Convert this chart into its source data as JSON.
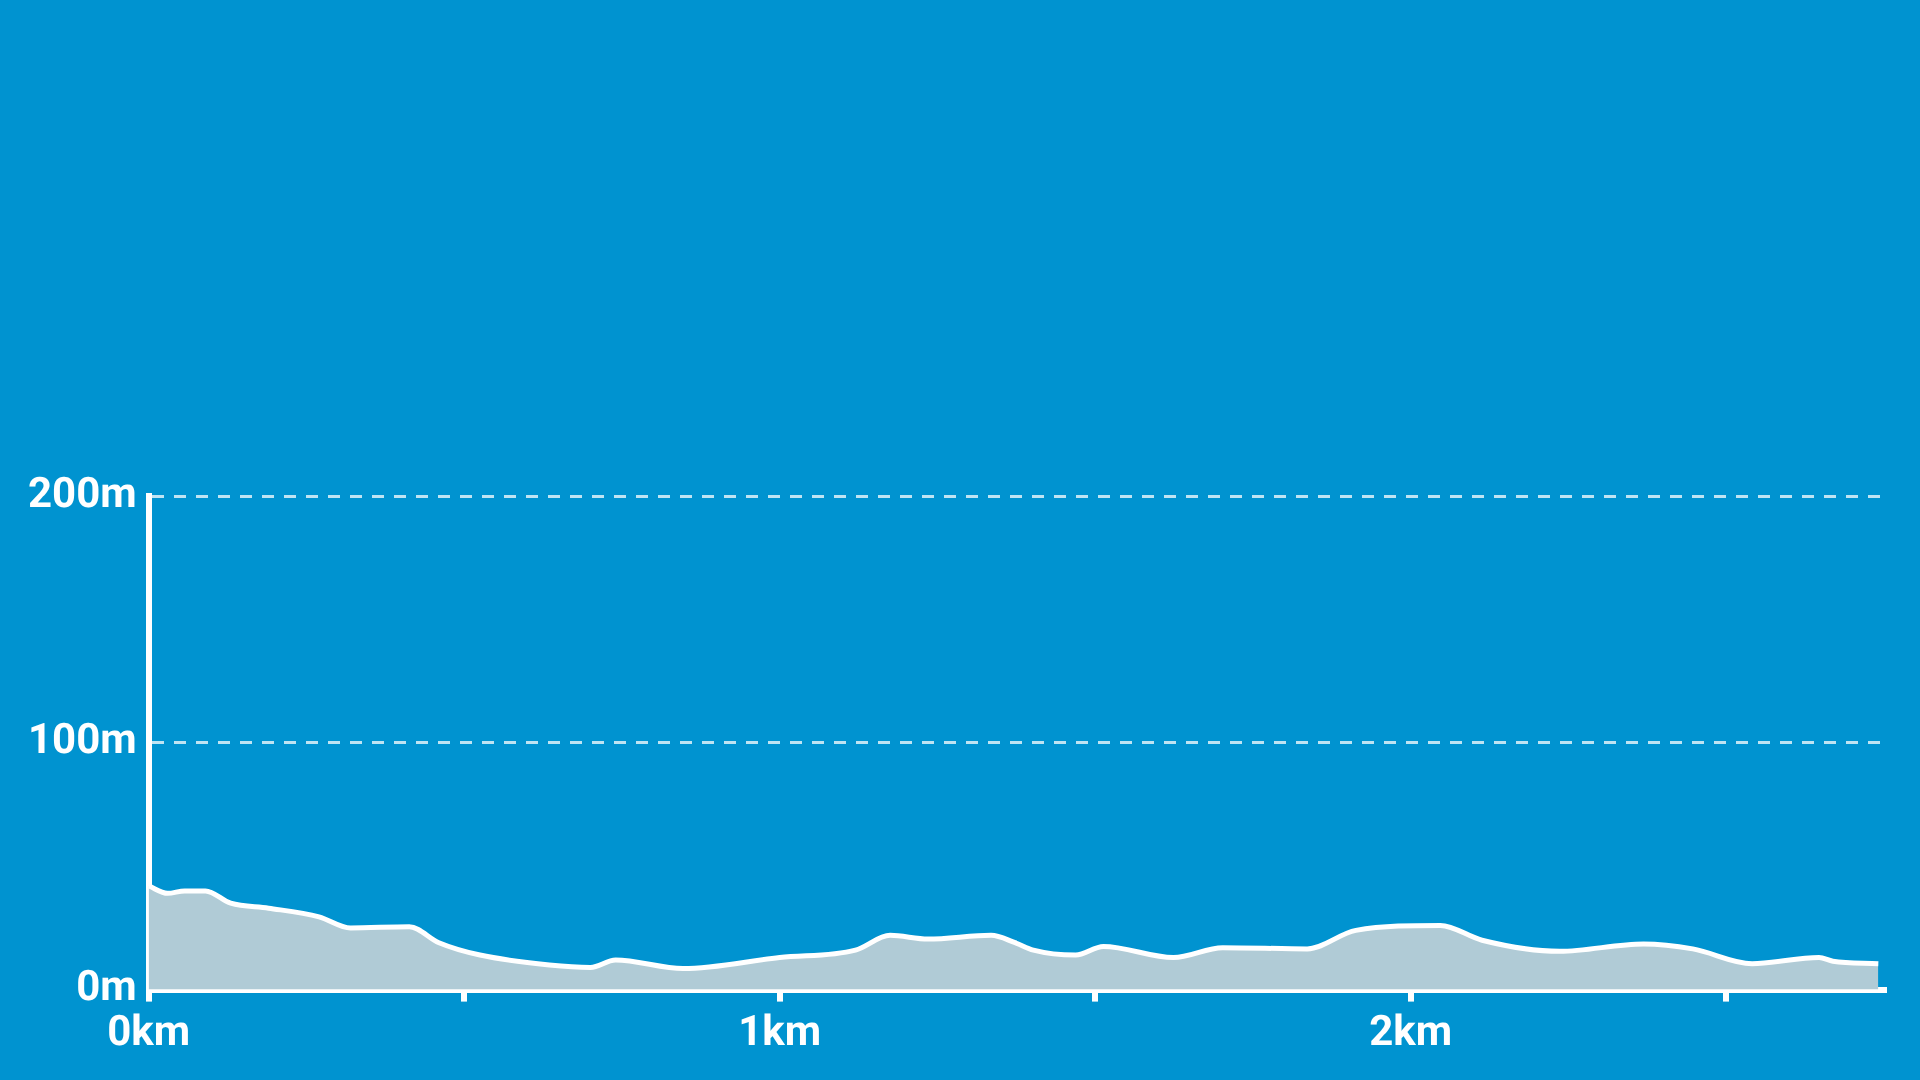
{
  "chart_data": {
    "type": "area",
    "x": [
      0,
      0.03,
      0.057,
      0.09,
      0.13,
      0.19,
      0.27,
      0.32,
      0.413,
      0.46,
      0.525,
      0.635,
      0.7,
      0.74,
      0.847,
      1.0,
      1.12,
      1.175,
      1.235,
      1.335,
      1.373,
      1.402,
      1.469,
      1.513,
      1.624,
      1.702,
      1.836,
      1.913,
      2.047,
      2.113,
      2.236,
      2.369,
      2.447,
      2.541,
      2.647,
      2.669,
      2.741
    ],
    "series": [
      {
        "color": "#b0cbd6",
        "values": [
          42,
          39,
          40,
          40,
          35,
          33,
          29.5,
          25,
          25.5,
          19,
          14,
          10,
          9,
          12,
          8.5,
          13,
          16,
          22,
          20.5,
          22,
          19,
          16,
          14,
          17.5,
          13,
          17,
          16.5,
          24,
          26,
          20,
          15.5,
          18.5,
          16.5,
          10.5,
          13,
          11.5,
          10.5
        ]
      }
    ],
    "xlim": [
      0,
      2.75
    ],
    "xticks": [
      {
        "value": 0,
        "label": "0km"
      },
      {
        "value": 0.5,
        "label": null
      },
      {
        "value": 1,
        "label": "1km"
      },
      {
        "value": 1.5,
        "label": null
      },
      {
        "value": 2,
        "label": "2km"
      },
      {
        "value": 2.5,
        "label": null
      }
    ],
    "ylim": [
      0,
      200
    ],
    "yticks": [
      {
        "value": 0,
        "label": "0m"
      },
      {
        "value": 100,
        "label": "100m"
      },
      {
        "value": 200,
        "label": "200m"
      }
    ],
    "grid": "y",
    "legend": false,
    "line_style": "solid",
    "marker": "none"
  }
}
